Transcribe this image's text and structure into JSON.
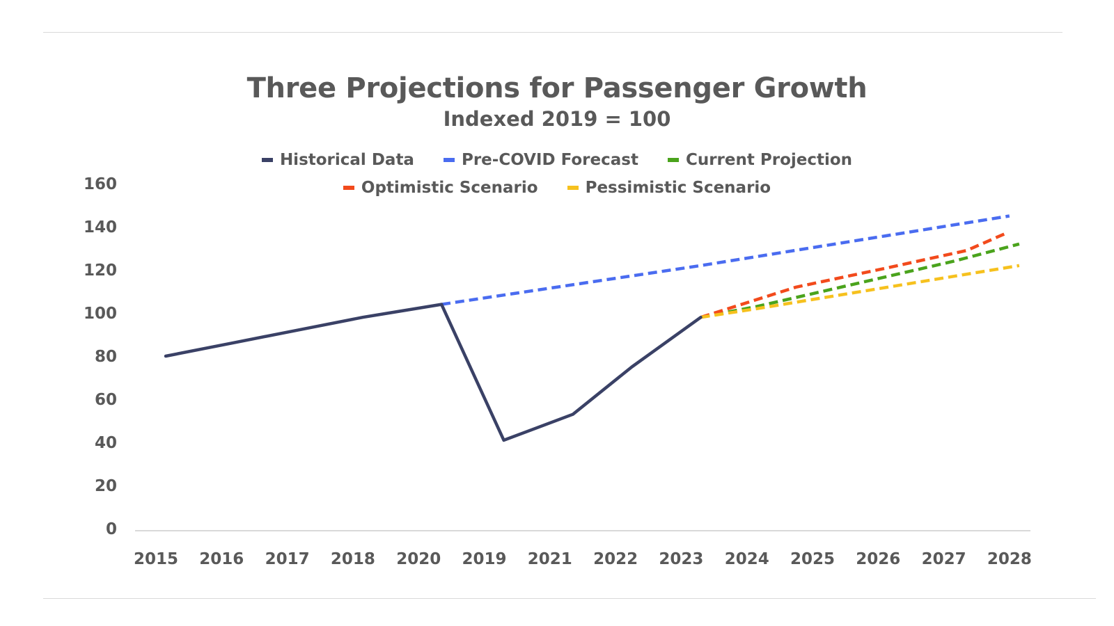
{
  "chart_data": {
    "type": "line",
    "title": "Three Projections for Passenger Growth",
    "subtitle": "Indexed 2019 = 100",
    "xlabel": "",
    "ylabel": "",
    "categories": [
      "2015",
      "2016",
      "2017",
      "2018",
      "2020",
      "2019",
      "2021",
      "2022",
      "2023",
      "2024",
      "2025",
      "2026",
      "2027",
      "2028"
    ],
    "ylim": [
      0,
      160
    ],
    "yticks": [
      "0",
      "20",
      "40",
      "60",
      "80",
      "100",
      "120",
      "140",
      "160"
    ],
    "grid": false,
    "legend_position": "top",
    "series": [
      {
        "name": "Historical Data",
        "color": "#3a4166",
        "style": "solid",
        "points": [
          {
            "x": 0,
            "y": 80
          },
          {
            "x": 1,
            "y": 86
          },
          {
            "x": 2,
            "y": 92
          },
          {
            "x": 3,
            "y": 98
          },
          {
            "x": 3.4,
            "y": 100
          },
          {
            "x": 4.2,
            "y": 104
          },
          {
            "x": 5.15,
            "y": 41
          },
          {
            "x": 6.2,
            "y": 53
          },
          {
            "x": 7.1,
            "y": 75
          },
          {
            "x": 8.15,
            "y": 98
          }
        ]
      },
      {
        "name": "Pre-COVID Forecast",
        "color": "#4a6cf0",
        "style": "dashed",
        "points": [
          {
            "x": 4.2,
            "y": 104
          },
          {
            "x": 8.15,
            "y": 122
          },
          {
            "x": 12.85,
            "y": 145
          }
        ]
      },
      {
        "name": "Current Projection",
        "color": "#4aa31c",
        "style": "dashed",
        "points": [
          {
            "x": 8.15,
            "y": 98
          },
          {
            "x": 9,
            "y": 103
          },
          {
            "x": 10,
            "y": 110
          },
          {
            "x": 11,
            "y": 117
          },
          {
            "x": 12,
            "y": 124
          },
          {
            "x": 13.0,
            "y": 132
          }
        ]
      },
      {
        "name": "Optimistic Scenario",
        "color": "#f24a1c",
        "style": "dashed",
        "points": [
          {
            "x": 8.15,
            "y": 98
          },
          {
            "x": 9.6,
            "y": 112
          },
          {
            "x": 11,
            "y": 121
          },
          {
            "x": 12.2,
            "y": 129
          },
          {
            "x": 12.8,
            "y": 137
          }
        ]
      },
      {
        "name": "Pessimistic Scenario",
        "color": "#f6c11e",
        "style": "dashed",
        "points": [
          {
            "x": 8.15,
            "y": 98
          },
          {
            "x": 9,
            "y": 102
          },
          {
            "x": 10,
            "y": 107
          },
          {
            "x": 11,
            "y": 112
          },
          {
            "x": 12,
            "y": 117
          },
          {
            "x": 13.0,
            "y": 122
          }
        ]
      }
    ]
  },
  "legend": {
    "row1": [
      {
        "label": "Historical Data",
        "color": "#3a4166"
      },
      {
        "label": "Pre-COVID Forecast",
        "color": "#4a6cf0"
      },
      {
        "label": "Current Projection",
        "color": "#4aa31c"
      }
    ],
    "row2": [
      {
        "label": "Optimistic Scenario",
        "color": "#f24a1c"
      },
      {
        "label": "Pessimistic Scenario",
        "color": "#f6c11e"
      }
    ]
  }
}
